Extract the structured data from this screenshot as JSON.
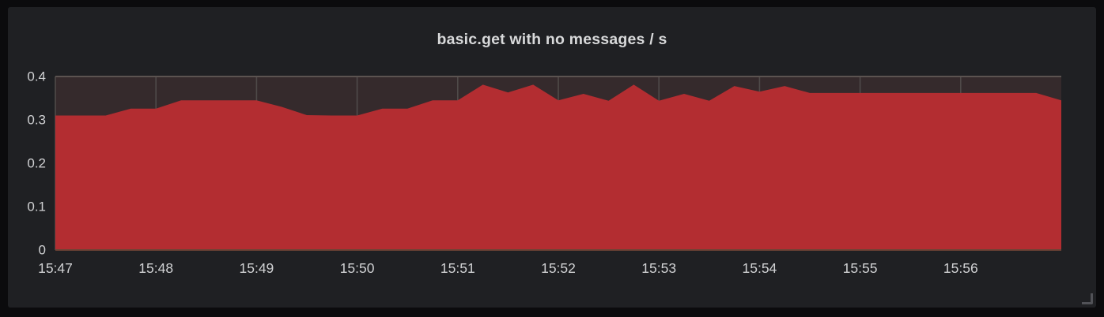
{
  "panel": {
    "title": "basic.get with no messages / s"
  },
  "chart_data": {
    "type": "area",
    "title": "basic.get with no messages / s",
    "xlabel": "",
    "ylabel": "",
    "legend": "none",
    "grid": true,
    "x_unit": "seconds since 15:47:00",
    "x_range": [
      0,
      600
    ],
    "ylim": [
      0,
      0.4
    ],
    "x_ticks": [
      {
        "t": 0,
        "label": "15:47"
      },
      {
        "t": 60,
        "label": "15:48"
      },
      {
        "t": 120,
        "label": "15:49"
      },
      {
        "t": 180,
        "label": "15:50"
      },
      {
        "t": 240,
        "label": "15:51"
      },
      {
        "t": 300,
        "label": "15:52"
      },
      {
        "t": 360,
        "label": "15:53"
      },
      {
        "t": 420,
        "label": "15:54"
      },
      {
        "t": 480,
        "label": "15:55"
      },
      {
        "t": 540,
        "label": "15:56"
      }
    ],
    "y_ticks": [
      {
        "v": 0,
        "label": "0"
      },
      {
        "v": 0.1,
        "label": "0.1"
      },
      {
        "v": 0.2,
        "label": "0.2"
      },
      {
        "v": 0.3,
        "label": "0.3"
      },
      {
        "v": 0.4,
        "label": "0.4"
      }
    ],
    "series": [
      {
        "name": "basic.get with no messages / s",
        "color": "#b32d31",
        "points": [
          [
            0,
            0.31
          ],
          [
            15,
            0.31
          ],
          [
            30,
            0.31
          ],
          [
            45,
            0.326
          ],
          [
            60,
            0.326
          ],
          [
            75,
            0.345
          ],
          [
            90,
            0.345
          ],
          [
            105,
            0.345
          ],
          [
            120,
            0.345
          ],
          [
            135,
            0.33
          ],
          [
            150,
            0.311
          ],
          [
            165,
            0.31
          ],
          [
            180,
            0.31
          ],
          [
            195,
            0.326
          ],
          [
            210,
            0.326
          ],
          [
            225,
            0.345
          ],
          [
            240,
            0.345
          ],
          [
            255,
            0.381
          ],
          [
            270,
            0.363
          ],
          [
            285,
            0.381
          ],
          [
            300,
            0.345
          ],
          [
            315,
            0.36
          ],
          [
            330,
            0.344
          ],
          [
            345,
            0.381
          ],
          [
            360,
            0.344
          ],
          [
            375,
            0.36
          ],
          [
            390,
            0.344
          ],
          [
            405,
            0.378
          ],
          [
            420,
            0.365
          ],
          [
            435,
            0.378
          ],
          [
            450,
            0.362
          ],
          [
            465,
            0.362
          ],
          [
            480,
            0.362
          ],
          [
            495,
            0.362
          ],
          [
            510,
            0.362
          ],
          [
            525,
            0.362
          ],
          [
            540,
            0.362
          ],
          [
            555,
            0.362
          ],
          [
            570,
            0.362
          ],
          [
            585,
            0.362
          ],
          [
            600,
            0.345
          ]
        ]
      }
    ],
    "colors": {
      "fill": "#b32d31",
      "plot_bg": "#352a2c",
      "grid": "#4f4a49",
      "top_line": "#5b5350",
      "baseline": "#6f4335",
      "tick_text": "#d0d1d3",
      "title_text": "#d8d9da",
      "panel_bg": "#1f2023",
      "outer_bg": "#0b0b0d"
    }
  }
}
